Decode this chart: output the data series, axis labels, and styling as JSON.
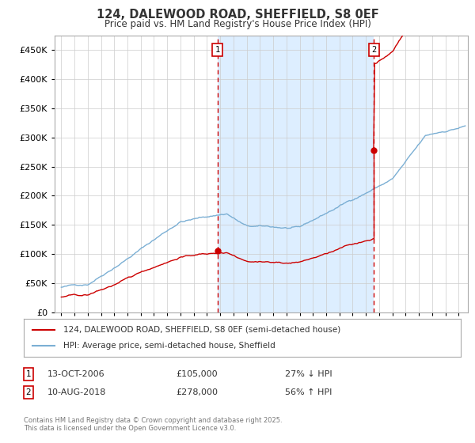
{
  "title": "124, DALEWOOD ROAD, SHEFFIELD, S8 0EF",
  "subtitle": "Price paid vs. HM Land Registry's House Price Index (HPI)",
  "line1_label": "124, DALEWOOD ROAD, SHEFFIELD, S8 0EF (semi-detached house)",
  "line2_label": "HPI: Average price, semi-detached house, Sheffield",
  "line1_color": "#cc0000",
  "line2_color": "#7bafd4",
  "shading_color": "#ddeeff",
  "marker1_date_x": 2006.79,
  "marker1_y": 105000,
  "marker2_date_x": 2018.61,
  "marker2_y": 278000,
  "vline_color": "#cc0000",
  "footnote": "Contains HM Land Registry data © Crown copyright and database right 2025.\nThis data is licensed under the Open Government Licence v3.0.",
  "ylim": [
    0,
    475000
  ],
  "yticks": [
    0,
    50000,
    100000,
    150000,
    200000,
    250000,
    300000,
    350000,
    400000,
    450000
  ],
  "xmin": 1994.5,
  "xmax": 2025.7,
  "background_color": "#ffffff",
  "grid_color": "#cccccc",
  "ann1_date": "13-OCT-2006",
  "ann1_price": "£105,000",
  "ann1_hpi": "27% ↓ HPI",
  "ann2_date": "10-AUG-2018",
  "ann2_price": "£278,000",
  "ann2_hpi": "56% ↑ HPI"
}
